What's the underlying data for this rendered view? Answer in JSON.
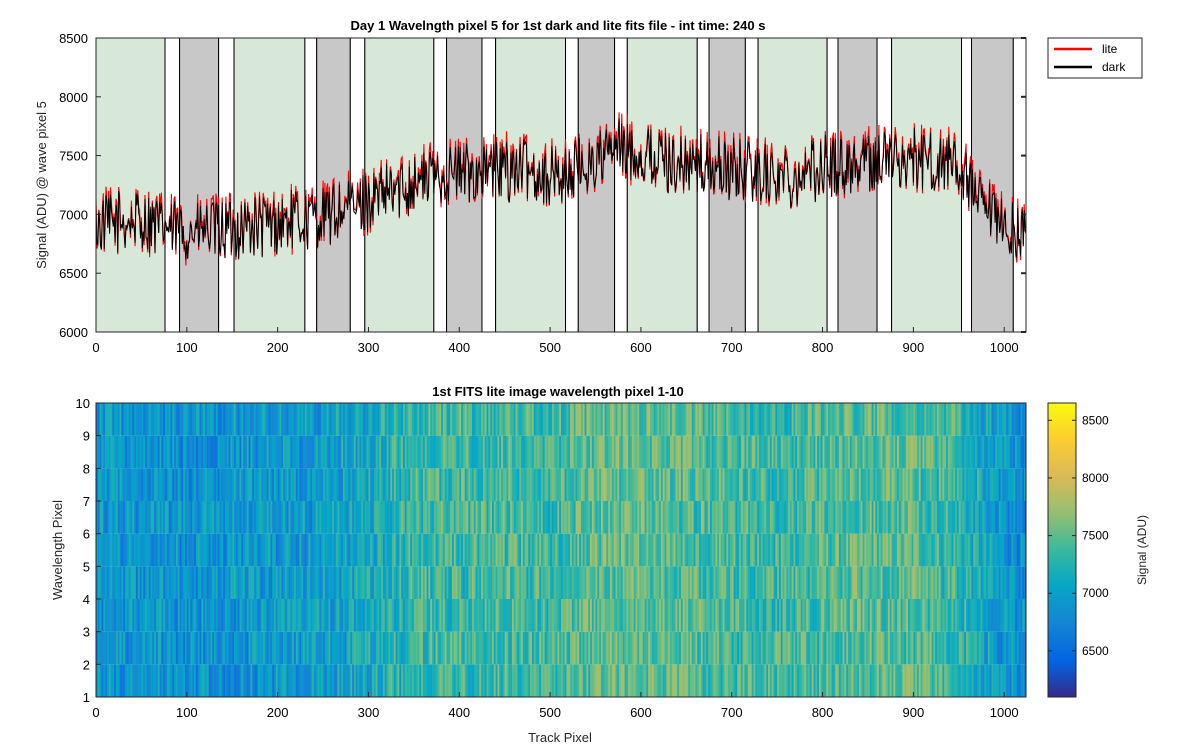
{
  "chart_data": [
    {
      "type": "line",
      "title": "Day 1 Wavelngth pixel 5 for 1st dark and lite fits file - int time: 240 s",
      "xlabel": "",
      "ylabel": "Signal (ADU) @ wave pixel 5",
      "xlim": [
        0,
        1024
      ],
      "ylim": [
        6000,
        8500
      ],
      "xticks": [
        "0",
        "100",
        "200",
        "300",
        "400",
        "500",
        "600",
        "700",
        "800",
        "900",
        "1000"
      ],
      "yticks": [
        "6000",
        "6500",
        "7000",
        "7500",
        "8000",
        "8500"
      ],
      "legend": {
        "placement": "outside-top-right",
        "entries": [
          "lite",
          "dark"
        ]
      },
      "series": [
        {
          "name": "lite",
          "color": "#ff0000",
          "x": [
            0,
            25,
            50,
            75,
            100,
            125,
            150,
            175,
            200,
            225,
            250,
            275,
            300,
            325,
            350,
            375,
            400,
            425,
            450,
            475,
            500,
            525,
            550,
            575,
            600,
            625,
            650,
            675,
            700,
            725,
            750,
            775,
            800,
            825,
            850,
            875,
            900,
            925,
            950,
            975,
            1000,
            1024
          ],
          "y": [
            6920,
            6950,
            6960,
            6900,
            6860,
            6880,
            6900,
            6920,
            6940,
            6970,
            7000,
            7060,
            7120,
            7200,
            7300,
            7360,
            7380,
            7380,
            7410,
            7400,
            7340,
            7380,
            7460,
            7580,
            7520,
            7480,
            7440,
            7420,
            7400,
            7380,
            7340,
            7360,
            7420,
            7440,
            7470,
            7500,
            7470,
            7460,
            7430,
            7050,
            6900,
            6850
          ]
        },
        {
          "name": "dark",
          "color": "#000000",
          "x": [
            0,
            25,
            50,
            75,
            100,
            125,
            150,
            175,
            200,
            225,
            250,
            275,
            300,
            325,
            350,
            375,
            400,
            425,
            450,
            475,
            500,
            525,
            550,
            575,
            600,
            625,
            650,
            675,
            700,
            725,
            750,
            775,
            800,
            825,
            850,
            875,
            900,
            925,
            950,
            975,
            1000,
            1024
          ],
          "y": [
            6900,
            6930,
            6940,
            6880,
            6840,
            6860,
            6880,
            6900,
            6920,
            6950,
            6980,
            7040,
            7100,
            7180,
            7280,
            7340,
            7360,
            7360,
            7390,
            7380,
            7320,
            7360,
            7440,
            7560,
            7500,
            7460,
            7420,
            7400,
            7380,
            7360,
            7320,
            7340,
            7400,
            7420,
            7450,
            7480,
            7450,
            7440,
            7410,
            7030,
            6880,
            6830
          ]
        }
      ],
      "shaded_spans": [
        {
          "kind": "lite",
          "color": "#d7e8d9",
          "x": [
            0,
            76
          ]
        },
        {
          "kind": "gap",
          "x": [
            76,
            92
          ]
        },
        {
          "kind": "dark",
          "color": "#c8c8c8",
          "x": [
            92,
            135
          ]
        },
        {
          "kind": "gap",
          "x": [
            135,
            152
          ]
        },
        {
          "kind": "lite",
          "color": "#d7e8d9",
          "x": [
            152,
            230
          ]
        },
        {
          "kind": "gap",
          "x": [
            230,
            243
          ]
        },
        {
          "kind": "dark",
          "color": "#c8c8c8",
          "x": [
            243,
            280
          ]
        },
        {
          "kind": "gap",
          "x": [
            280,
            296
          ]
        },
        {
          "kind": "lite",
          "color": "#d7e8d9",
          "x": [
            296,
            372
          ]
        },
        {
          "kind": "gap",
          "x": [
            372,
            386
          ]
        },
        {
          "kind": "dark",
          "color": "#c8c8c8",
          "x": [
            386,
            425
          ]
        },
        {
          "kind": "gap",
          "x": [
            425,
            440
          ]
        },
        {
          "kind": "lite",
          "color": "#d7e8d9",
          "x": [
            440,
            517
          ]
        },
        {
          "kind": "gap",
          "x": [
            517,
            531
          ]
        },
        {
          "kind": "dark",
          "color": "#c8c8c8",
          "x": [
            531,
            571
          ]
        },
        {
          "kind": "gap",
          "x": [
            571,
            585
          ]
        },
        {
          "kind": "lite",
          "color": "#d7e8d9",
          "x": [
            585,
            662
          ]
        },
        {
          "kind": "gap",
          "x": [
            662,
            675
          ]
        },
        {
          "kind": "dark",
          "color": "#c8c8c8",
          "x": [
            675,
            715
          ]
        },
        {
          "kind": "gap",
          "x": [
            715,
            729
          ]
        },
        {
          "kind": "lite",
          "color": "#d7e8d9",
          "x": [
            729,
            805
          ]
        },
        {
          "kind": "gap",
          "x": [
            805,
            817
          ]
        },
        {
          "kind": "dark",
          "color": "#c8c8c8",
          "x": [
            817,
            860
          ]
        },
        {
          "kind": "gap",
          "x": [
            860,
            876
          ]
        },
        {
          "kind": "lite",
          "color": "#d7e8d9",
          "x": [
            876,
            953
          ]
        },
        {
          "kind": "gap",
          "x": [
            953,
            964
          ]
        },
        {
          "kind": "dark",
          "color": "#c8c8c8",
          "x": [
            964,
            1010
          ]
        },
        {
          "kind": "gap",
          "x": [
            1010,
            1024
          ]
        }
      ],
      "grid": false
    },
    {
      "type": "heatmap",
      "title": "1st FITS lite image wavelength pixel 1-10",
      "xlabel": "Track Pixel",
      "ylabel": "Wavelength Pixel",
      "xlim": [
        0,
        1024
      ],
      "ylim": [
        1,
        10
      ],
      "xticks": [
        "0",
        "100",
        "200",
        "300",
        "400",
        "500",
        "600",
        "700",
        "800",
        "900",
        "1000"
      ],
      "yticks": [
        "1",
        "2",
        "3",
        "4",
        "5",
        "6",
        "7",
        "8",
        "9",
        "10"
      ],
      "colorbar": {
        "label": "Signal (ADU)",
        "range": [
          6100,
          8650
        ],
        "ticks": [
          "6500",
          "7000",
          "7500",
          "8000",
          "8500"
        ],
        "colormap": "parula"
      },
      "mean_profile": {
        "x": [
          0,
          50,
          100,
          150,
          200,
          250,
          300,
          350,
          400,
          450,
          500,
          550,
          600,
          650,
          700,
          750,
          800,
          850,
          900,
          950,
          1000,
          1024
        ],
        "y": [
          6900,
          6920,
          6860,
          6900,
          6930,
          6990,
          7120,
          7330,
          7370,
          7400,
          7350,
          7500,
          7510,
          7440,
          7400,
          7340,
          7430,
          7480,
          7460,
          7300,
          6900,
          6850
        ]
      },
      "grid": false
    }
  ]
}
